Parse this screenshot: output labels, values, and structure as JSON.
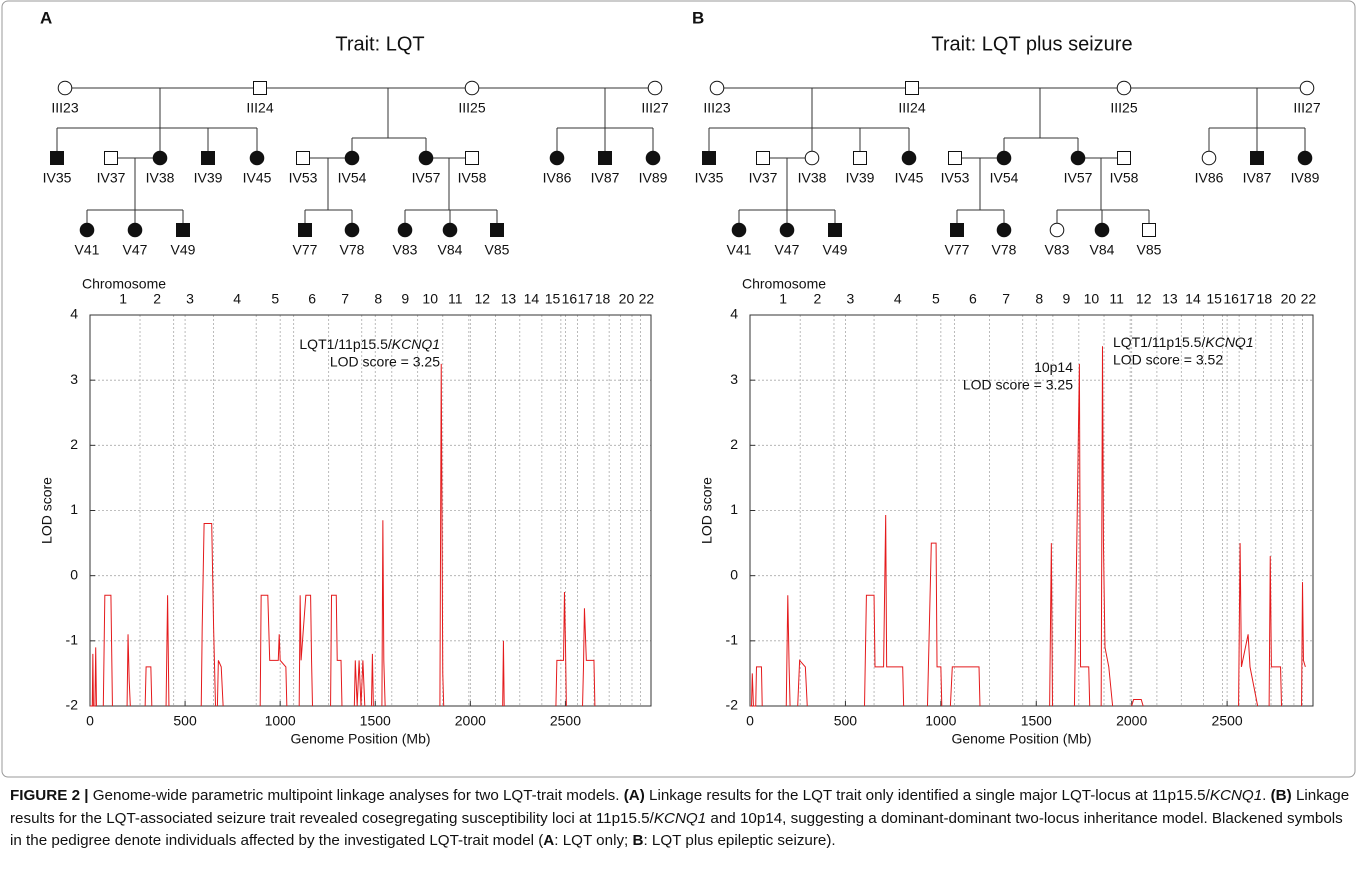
{
  "panels": [
    {
      "letter": "A",
      "title": "Trait: LQT",
      "individuals": [
        {
          "id": "III23",
          "sex": "female",
          "affected": false
        },
        {
          "id": "III24",
          "sex": "male",
          "affected": false
        },
        {
          "id": "III25",
          "sex": "female",
          "affected": false
        },
        {
          "id": "III27",
          "sex": "female",
          "affected": false
        },
        {
          "id": "IV35",
          "sex": "male",
          "affected": true
        },
        {
          "id": "IV37",
          "sex": "male",
          "affected": false
        },
        {
          "id": "IV38",
          "sex": "female",
          "affected": true
        },
        {
          "id": "IV39",
          "sex": "male",
          "affected": true
        },
        {
          "id": "IV45",
          "sex": "female",
          "affected": true
        },
        {
          "id": "IV53",
          "sex": "male",
          "affected": false
        },
        {
          "id": "IV54",
          "sex": "female",
          "affected": true
        },
        {
          "id": "IV57",
          "sex": "female",
          "affected": true
        },
        {
          "id": "IV58",
          "sex": "male",
          "affected": false
        },
        {
          "id": "IV86",
          "sex": "female",
          "affected": true
        },
        {
          "id": "IV87",
          "sex": "male",
          "affected": true
        },
        {
          "id": "IV89",
          "sex": "female",
          "affected": true
        },
        {
          "id": "V41",
          "sex": "female",
          "affected": true
        },
        {
          "id": "V47",
          "sex": "female",
          "affected": true
        },
        {
          "id": "V49",
          "sex": "male",
          "affected": true
        },
        {
          "id": "V77",
          "sex": "male",
          "affected": true
        },
        {
          "id": "V78",
          "sex": "female",
          "affected": true
        },
        {
          "id": "V83",
          "sex": "female",
          "affected": true
        },
        {
          "id": "V84",
          "sex": "female",
          "affected": true
        },
        {
          "id": "V85",
          "sex": "male",
          "affected": true
        }
      ]
    },
    {
      "letter": "B",
      "title": "Trait: LQT plus seizure",
      "individuals": [
        {
          "id": "III23",
          "sex": "female",
          "affected": false
        },
        {
          "id": "III24",
          "sex": "male",
          "affected": false
        },
        {
          "id": "III25",
          "sex": "female",
          "affected": false
        },
        {
          "id": "III27",
          "sex": "female",
          "affected": false
        },
        {
          "id": "IV35",
          "sex": "male",
          "affected": true
        },
        {
          "id": "IV37",
          "sex": "male",
          "affected": false
        },
        {
          "id": "IV38",
          "sex": "female",
          "affected": false
        },
        {
          "id": "IV39",
          "sex": "male",
          "affected": false
        },
        {
          "id": "IV45",
          "sex": "female",
          "affected": true
        },
        {
          "id": "IV53",
          "sex": "male",
          "affected": false
        },
        {
          "id": "IV54",
          "sex": "female",
          "affected": true
        },
        {
          "id": "IV57",
          "sex": "female",
          "affected": true
        },
        {
          "id": "IV58",
          "sex": "male",
          "affected": false
        },
        {
          "id": "IV86",
          "sex": "female",
          "affected": false
        },
        {
          "id": "IV87",
          "sex": "male",
          "affected": true
        },
        {
          "id": "IV89",
          "sex": "female",
          "affected": true
        },
        {
          "id": "V41",
          "sex": "female",
          "affected": true
        },
        {
          "id": "V47",
          "sex": "female",
          "affected": true
        },
        {
          "id": "V49",
          "sex": "male",
          "affected": true
        },
        {
          "id": "V77",
          "sex": "male",
          "affected": true
        },
        {
          "id": "V78",
          "sex": "female",
          "affected": true
        },
        {
          "id": "V83",
          "sex": "female",
          "affected": false
        },
        {
          "id": "V84",
          "sex": "female",
          "affected": true
        },
        {
          "id": "V85",
          "sex": "male",
          "affected": false
        }
      ]
    }
  ],
  "chart_data": [
    {
      "type": "line",
      "x_label": "Genome Position (Mb)",
      "y_label": "LOD score",
      "x2_label": "Chromosome",
      "xlim": [
        0,
        2950
      ],
      "ylim": [
        -2,
        4
      ],
      "grid": true,
      "xticks": [
        0,
        500,
        1000,
        1500,
        2000,
        2500
      ],
      "yticks": [
        -2,
        -1,
        0,
        1,
        2,
        3,
        4
      ],
      "x2ticks": [
        {
          "value": 174,
          "label": "1"
        },
        {
          "value": 353,
          "label": "2"
        },
        {
          "value": 526,
          "label": "3"
        },
        {
          "value": 774,
          "label": "4"
        },
        {
          "value": 974,
          "label": "5"
        },
        {
          "value": 1168,
          "label": "6"
        },
        {
          "value": 1342,
          "label": "7"
        },
        {
          "value": 1516,
          "label": "8"
        },
        {
          "value": 1658,
          "label": "9"
        },
        {
          "value": 1789,
          "label": "10"
        },
        {
          "value": 1921,
          "label": "11"
        },
        {
          "value": 2063,
          "label": "12"
        },
        {
          "value": 2200,
          "label": "13"
        },
        {
          "value": 2321,
          "label": "14"
        },
        {
          "value": 2432,
          "label": "15"
        },
        {
          "value": 2521,
          "label": "16"
        },
        {
          "value": 2605,
          "label": "17"
        },
        {
          "value": 2695,
          "label": "18"
        },
        {
          "value": 2821,
          "label": "20"
        },
        {
          "value": 2926,
          "label": "22"
        }
      ],
      "chromosome_boundaries": [
        263,
        440,
        650,
        874,
        1071,
        1255,
        1429,
        1587,
        1723,
        1855,
        1992,
        2132,
        2260,
        2376,
        2476,
        2563,
        2650,
        2730,
        2790,
        2850,
        2895
      ],
      "series": [
        {
          "color": "#e41a1c",
          "x": [
            0,
            12,
            15,
            18,
            26,
            30,
            34,
            null,
            70,
            78,
            110,
            118,
            null,
            195,
            200,
            206,
            212,
            null,
            290,
            295,
            320,
            325,
            null,
            400,
            408,
            415,
            null,
            585,
            590,
            600,
            640,
            650,
            660,
            null,
            670,
            675,
            690,
            700,
            null,
            895,
            900,
            935,
            945,
            990,
            995,
            1000,
            1030,
            1035,
            null,
            1100,
            1105,
            1110,
            1135,
            1160,
            1165,
            1170,
            null,
            1265,
            1270,
            1295,
            1300,
            1320,
            1325,
            null,
            1390,
            1395,
            1405,
            1415,
            1425,
            1435,
            1445,
            null,
            1480,
            1485,
            1490,
            null,
            1535,
            1540,
            1545,
            1552,
            null,
            1840,
            1847,
            1855,
            1860,
            null,
            2170,
            2174,
            2178,
            null,
            2450,
            2455,
            2490,
            2495,
            2500,
            2505,
            null,
            2590,
            2595,
            2600,
            2610,
            2650,
            2655
          ],
          "values": [
            -2,
            -2,
            -1.2,
            -2,
            -2,
            -1.1,
            -2,
            null,
            -2,
            -0.3,
            -0.3,
            -2,
            null,
            -2,
            -0.9,
            -1.6,
            -2,
            null,
            -2,
            -1.4,
            -1.4,
            -2,
            null,
            -2,
            -0.3,
            -2,
            null,
            -2,
            -0.8,
            0.8,
            0.8,
            -0.8,
            -2,
            null,
            -2,
            -1.3,
            -1.4,
            -2,
            null,
            -2,
            -0.3,
            -0.3,
            -1.3,
            -1.3,
            -0.9,
            -1.3,
            -1.4,
            -2,
            null,
            -2,
            -0.3,
            -1.3,
            -0.3,
            -0.3,
            -1.3,
            -2,
            null,
            -2,
            -0.3,
            -0.3,
            -1.3,
            -1.3,
            -2,
            null,
            -2,
            -1.3,
            -2,
            -1.3,
            -2,
            -1.3,
            -2,
            null,
            -2,
            -1.2,
            -2,
            null,
            -2,
            0.85,
            -1.3,
            -2,
            null,
            -2,
            3.25,
            -1.5,
            -2,
            null,
            -2,
            -1,
            -2,
            null,
            -2,
            -1.3,
            -1.3,
            -0.25,
            -1,
            -2,
            null,
            -2,
            -1.4,
            -0.5,
            -1.3,
            -1.3,
            -2
          ]
        }
      ],
      "annotations": [
        {
          "prefix": "LQT1/11p15.5/",
          "gene": "KCNQ1",
          "score": "LOD score = 3.25"
        }
      ]
    },
    {
      "type": "line",
      "x_label": "Genome Position (Mb)",
      "y_label": "LOD score",
      "x2_label": "Chromosome",
      "xlim": [
        0,
        2950
      ],
      "ylim": [
        -2,
        4
      ],
      "grid": true,
      "xticks": [
        0,
        500,
        1000,
        1500,
        2000,
        2500
      ],
      "yticks": [
        -2,
        -1,
        0,
        1,
        2,
        3,
        4
      ],
      "x2ticks": [
        {
          "value": 174,
          "label": "1"
        },
        {
          "value": 353,
          "label": "2"
        },
        {
          "value": 526,
          "label": "3"
        },
        {
          "value": 774,
          "label": "4"
        },
        {
          "value": 974,
          "label": "5"
        },
        {
          "value": 1168,
          "label": "6"
        },
        {
          "value": 1342,
          "label": "7"
        },
        {
          "value": 1516,
          "label": "8"
        },
        {
          "value": 1658,
          "label": "9"
        },
        {
          "value": 1789,
          "label": "10"
        },
        {
          "value": 1921,
          "label": "11"
        },
        {
          "value": 2063,
          "label": "12"
        },
        {
          "value": 2200,
          "label": "13"
        },
        {
          "value": 2321,
          "label": "14"
        },
        {
          "value": 2432,
          "label": "15"
        },
        {
          "value": 2521,
          "label": "16"
        },
        {
          "value": 2605,
          "label": "17"
        },
        {
          "value": 2695,
          "label": "18"
        },
        {
          "value": 2821,
          "label": "20"
        },
        {
          "value": 2926,
          "label": "22"
        }
      ],
      "chromosome_boundaries": [
        263,
        440,
        650,
        874,
        1071,
        1255,
        1429,
        1587,
        1723,
        1855,
        1992,
        2132,
        2260,
        2376,
        2476,
        2563,
        2650,
        2730,
        2790,
        2850,
        2895
      ],
      "series": [
        {
          "color": "#e41a1c",
          "x": [
            0,
            8,
            12,
            18,
            30,
            34,
            60,
            64,
            null,
            190,
            198,
            205,
            210,
            null,
            250,
            260,
            290,
            300,
            null,
            600,
            610,
            650,
            655,
            700,
            711,
            716,
            800,
            805,
            null,
            930,
            950,
            975,
            980,
            1000,
            1005,
            null,
            1050,
            1060,
            1200,
            1205,
            null,
            1570,
            1579,
            1585,
            null,
            1700,
            1726,
            1732,
            1775,
            1780,
            null,
            1840,
            1847,
            1852,
            1860,
            1880,
            1900,
            null,
            2000,
            2010,
            2050,
            2060,
            null,
            2560,
            2568,
            2575,
            2610,
            2620,
            2660,
            null,
            2720,
            2726,
            2732,
            2780,
            2785,
            null,
            2890,
            2895,
            2900,
            2910
          ],
          "values": [
            -2,
            -2,
            -1.5,
            -2,
            -2,
            -1.4,
            -1.4,
            -2,
            null,
            -2,
            -0.3,
            -1.4,
            -2,
            null,
            -2,
            -1.3,
            -1.4,
            -2,
            null,
            -2,
            -0.3,
            -0.3,
            -1.4,
            -1.4,
            0.93,
            -1.4,
            -1.4,
            -2,
            null,
            -2,
            0.5,
            0.5,
            -1.4,
            -1.4,
            -2,
            null,
            -2,
            -1.4,
            -1.4,
            -2,
            null,
            -2,
            0.5,
            -2,
            null,
            -2,
            3.25,
            -1.4,
            -1.4,
            -2,
            null,
            -2,
            3.52,
            0.5,
            -1.1,
            -1.4,
            -2,
            null,
            -2,
            -1.9,
            -1.9,
            -2,
            null,
            -2,
            0.5,
            -1.4,
            -0.9,
            -1.4,
            -2,
            null,
            -2,
            0.3,
            -1.4,
            -1.4,
            -2,
            null,
            -2,
            -0.1,
            -1.3,
            -1.4
          ]
        }
      ],
      "annotations": [
        {
          "prefix": "10p14",
          "score": "LOD score = 3.25"
        },
        {
          "prefix": "LQT1/11p15.5/",
          "gene": "KCNQ1",
          "score": "LOD score = 3.52"
        }
      ]
    }
  ],
  "caption": {
    "runs": [
      {
        "text": "FIGURE 2 |",
        "bold": true
      },
      {
        "text": " Genome-wide parametric multipoint linkage analyses for two LQT-trait models. "
      },
      {
        "text": "(A)",
        "bold": true
      },
      {
        "text": " Linkage results for the LQT trait only identified a single major LQT-locus at 11p15.5/"
      },
      {
        "text": "KCNQ1",
        "italic": true
      },
      {
        "text": ". "
      },
      {
        "text": "(B)",
        "bold": true
      },
      {
        "text": " Linkage results for the LQT-associated seizure trait revealed cosegregating susceptibility loci at 11p15.5/"
      },
      {
        "text": "KCNQ1",
        "italic": true
      },
      {
        "text": " and 10p14, suggesting a dominant-dominant two-locus inheritance model. Blackened symbols in the pedigree denote individuals affected by the investigated LQT-trait model ("
      },
      {
        "text": "A",
        "bold": true
      },
      {
        "text": ": LQT only; "
      },
      {
        "text": "B",
        "bold": true
      },
      {
        "text": ": LQT plus epileptic seizure)."
      }
    ]
  }
}
